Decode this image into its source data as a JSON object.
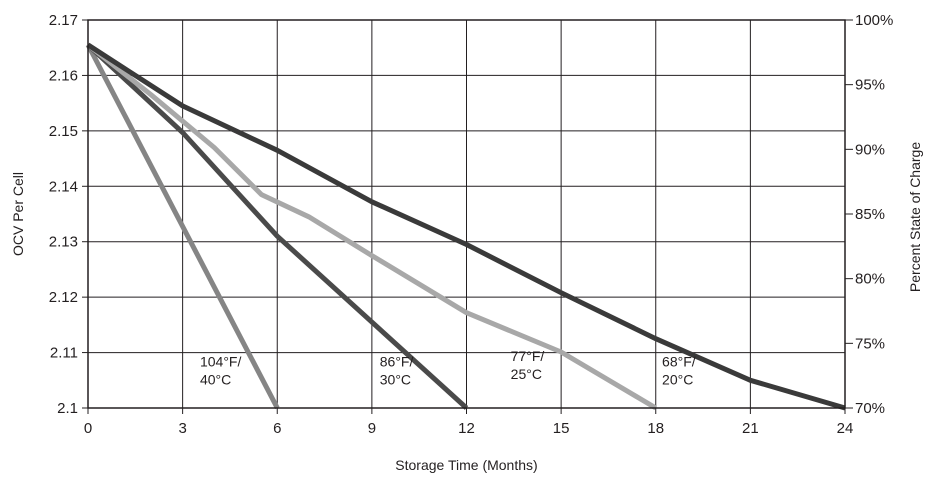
{
  "chart_data": {
    "type": "line",
    "xlabel": "Storage Time (Months)",
    "ylabel": "OCV Per Cell",
    "y2label": "Percent State of Charge",
    "xlim": [
      0,
      24
    ],
    "ylim": [
      2.1,
      2.17
    ],
    "y2lim": [
      70,
      100
    ],
    "grid": true,
    "x_ticks": [
      "0",
      "3",
      "6",
      "9",
      "12",
      "15",
      "18",
      "21",
      "24"
    ],
    "x_tick_values": [
      0,
      3,
      6,
      9,
      12,
      15,
      18,
      21,
      24
    ],
    "y_ticks": [
      "2.1",
      "2.11",
      "2.12",
      "2.13",
      "2.14",
      "2.15",
      "2.16",
      "2.17"
    ],
    "y_tick_values": [
      2.1,
      2.11,
      2.12,
      2.13,
      2.14,
      2.15,
      2.16,
      2.17
    ],
    "y2_ticks": [
      "70%",
      "75%",
      "80%",
      "85%",
      "90%",
      "95%",
      "100%"
    ],
    "y2_tick_values": [
      70,
      75,
      80,
      85,
      90,
      95,
      100
    ],
    "series": [
      {
        "name": "104°F/ 40°C",
        "label_lines": [
          "104°F/",
          "40°C"
        ],
        "color": "#858585",
        "x": [
          0,
          6
        ],
        "y": [
          2.1655,
          2.1
        ]
      },
      {
        "name": "86°F/ 30°C",
        "label_lines": [
          "86°F/",
          "30°C"
        ],
        "color": "#4a4a4a",
        "x": [
          0,
          3,
          6,
          12
        ],
        "y": [
          2.1655,
          2.1497,
          2.131,
          2.1
        ]
      },
      {
        "name": "77°F/ 25°C",
        "label_lines": [
          "77°F/",
          "25°C"
        ],
        "color": "#a8a8a8",
        "x": [
          0,
          2,
          4,
          5.5,
          7,
          9,
          12,
          15,
          18
        ],
        "y": [
          2.1655,
          2.1565,
          2.147,
          2.1385,
          2.1345,
          2.1275,
          2.1172,
          2.1101,
          2.1
        ]
      },
      {
        "name": "68°F/ 20°C",
        "label_lines": [
          "68°F/",
          "20°C"
        ],
        "color": "#3a3a3a",
        "x": [
          0,
          3,
          6,
          9,
          12,
          15,
          18,
          21,
          24
        ],
        "y": [
          2.1655,
          2.1545,
          2.1465,
          2.1372,
          2.1295,
          2.1208,
          2.1125,
          2.105,
          2.1
        ]
      }
    ]
  }
}
